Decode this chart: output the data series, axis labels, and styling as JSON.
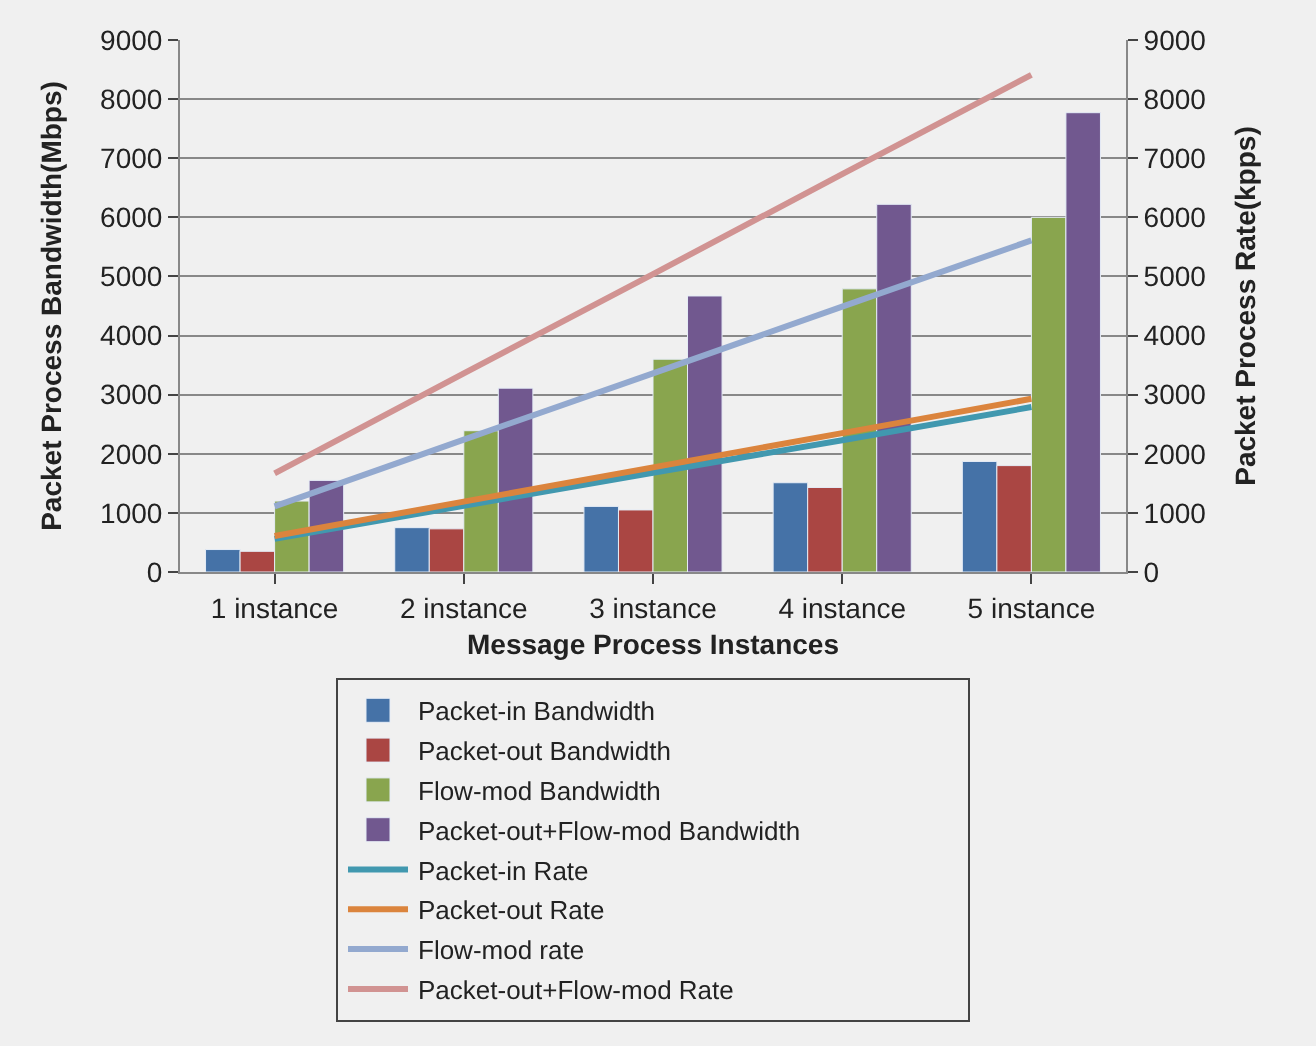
{
  "chart_data": {
    "type": "bar",
    "xlabel": "Message Process Instances",
    "ylabel": "Packet Process Bandwidth(Mbps)",
    "y2label": "Packet Process Rate(kpps)",
    "categories": [
      "1 instance",
      "2 instance",
      "3 instance",
      "4 instance",
      "5 instance"
    ],
    "series": [
      {
        "name": "Packet-in Bandwidth",
        "color": "#4572a7",
        "values": [
          380,
          750,
          1110,
          1510,
          1870
        ]
      },
      {
        "name": "Packet-out Bandwidth",
        "color": "#aa4643",
        "values": [
          350,
          730,
          1050,
          1430,
          1800
        ]
      },
      {
        "name": "Flow-mod Bandwidth",
        "color": "#89a54e",
        "values": [
          1200,
          2390,
          3600,
          4790,
          6000
        ]
      },
      {
        "name": "Packet-out+Flow-mod Bandwidth",
        "color": "#71588f",
        "values": [
          1550,
          3110,
          4670,
          6220,
          7770
        ]
      },
      {
        "name": "Packet-in Rate",
        "type": "line",
        "axis": "y2",
        "color": "#4198af",
        "values": [
          560,
          1120,
          1680,
          2230,
          2790
        ]
      },
      {
        "name": "Packet-out Rate",
        "type": "line",
        "axis": "y2",
        "color": "#db843d",
        "values": [
          610,
          1190,
          1770,
          2350,
          2930
        ]
      },
      {
        "name": "Flow-mod rate",
        "type": "line",
        "axis": "y2",
        "color": "#93a9cf",
        "values": [
          1110,
          2240,
          3360,
          4490,
          5610
        ]
      },
      {
        "name": "Packet-out+Flow-mod Rate",
        "type": "line",
        "axis": "y2",
        "color": "#d19392",
        "values": [
          1670,
          3360,
          5040,
          6730,
          8410
        ]
      }
    ],
    "ylim": [
      0,
      9000
    ],
    "yticks": [
      0,
      1000,
      2000,
      3000,
      4000,
      5000,
      6000,
      7000,
      8000,
      9000
    ],
    "y2lim": [
      0,
      9000
    ],
    "y2ticks": [
      0,
      1000,
      2000,
      3000,
      4000,
      5000,
      6000,
      7000,
      8000,
      9000
    ],
    "grid": "y",
    "legend": "bottom",
    "marker": "none",
    "line_style": "solid"
  }
}
